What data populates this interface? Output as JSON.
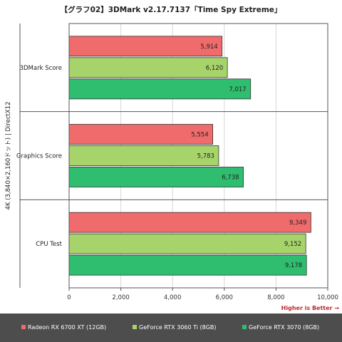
{
  "chart_data": {
    "type": "bar",
    "orientation": "horizontal",
    "title": "【グラフ02】3DMark v2.17.7137「Time Spy Extreme」",
    "ylabel": "4K (3,840×2,160ドット) | DirectX12",
    "categories": [
      "3DMark Score",
      "Graphics Score",
      "CPU Test"
    ],
    "series": [
      {
        "name": "Radeon RX 6700 XT (12GB)",
        "color": "#f06b6b",
        "values": [
          5914,
          5554,
          9349
        ],
        "labels": [
          "5,914",
          "5,554",
          "9,349"
        ]
      },
      {
        "name": "GeForce RTX 3060 Ti (8GB)",
        "color": "#a6d46b",
        "values": [
          6120,
          5783,
          9152
        ],
        "labels": [
          "6,120",
          "5,783",
          "9,152"
        ]
      },
      {
        "name": "GeForce RTX 3070 (8GB)",
        "color": "#2fbd6f",
        "values": [
          7017,
          6738,
          9178
        ],
        "labels": [
          "7,017",
          "6,738",
          "9,178"
        ]
      }
    ],
    "xlim": [
      0,
      10000
    ],
    "xticks": [
      0,
      2000,
      4000,
      6000,
      8000,
      10000
    ],
    "xtick_labels": [
      "0",
      "2,000",
      "4,000",
      "6,000",
      "8,000",
      "10,000"
    ],
    "note": "Higher is Better →",
    "grid": true,
    "legend": "bottom"
  }
}
